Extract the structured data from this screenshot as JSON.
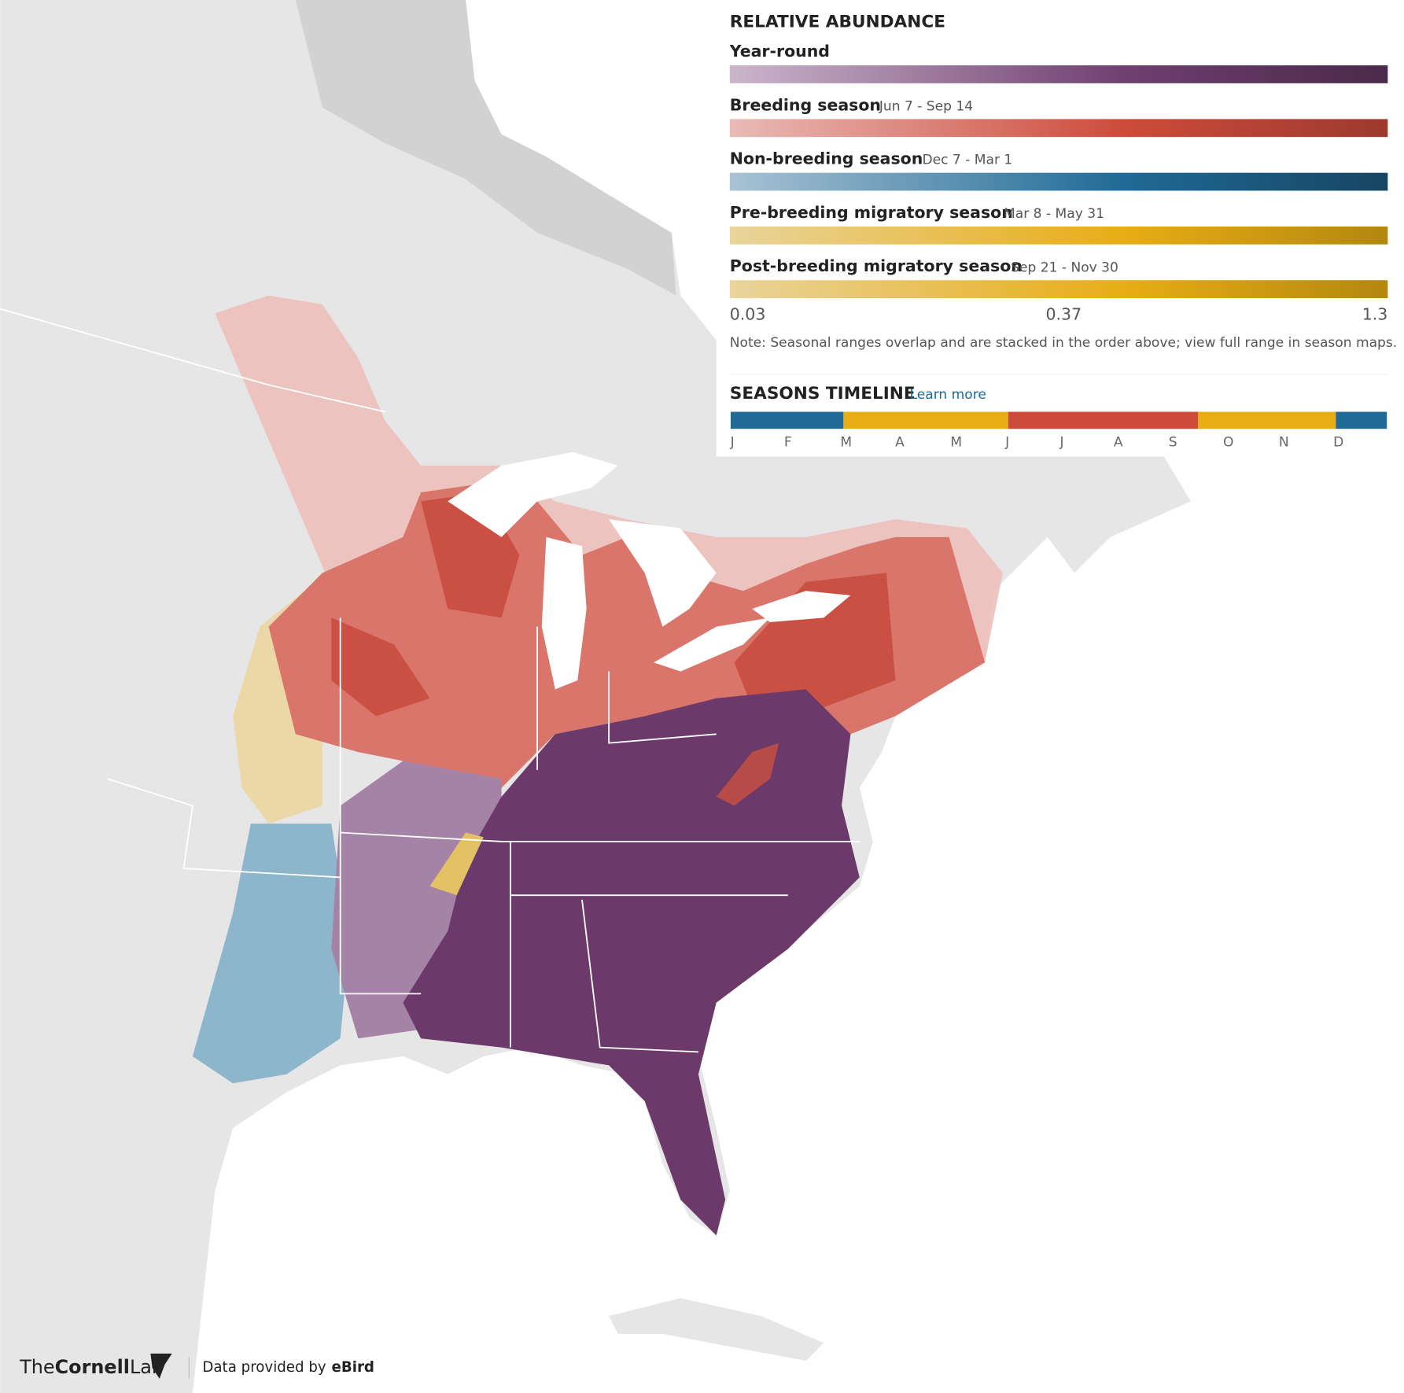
{
  "legend": {
    "title": "RELATIVE ABUNDANCE",
    "seasons": [
      {
        "name": "Year-round"
      },
      {
        "name": "Breeding season",
        "dates": "Jun 7 - Sep 14"
      },
      {
        "name": "Non-breeding season",
        "dates": "Dec 7 - Mar 1"
      },
      {
        "name": "Pre-breeding migratory season",
        "dates": "Mar 8 - May 31"
      },
      {
        "name": "Post-breeding migratory season",
        "dates": "Sep 21 - Nov 30"
      }
    ],
    "scale_labels": [
      0.03,
      0.37,
      1.3
    ],
    "note": "Note: Seasonal ranges overlap and are stacked in the order above; view full range in season maps."
  },
  "timeline": {
    "title": "SEASONS TIMELINE",
    "link": "Learn more",
    "months": [
      "J",
      "F",
      "M",
      "A",
      "M",
      "J",
      "J",
      "A",
      "S",
      "O",
      "N",
      "D"
    ]
  },
  "footer": {
    "logo_the": "The",
    "logo_cornell": "Cornell",
    "logo_lab": "Lab",
    "credit": "Data provided by",
    "credit_source": "eBird"
  }
}
